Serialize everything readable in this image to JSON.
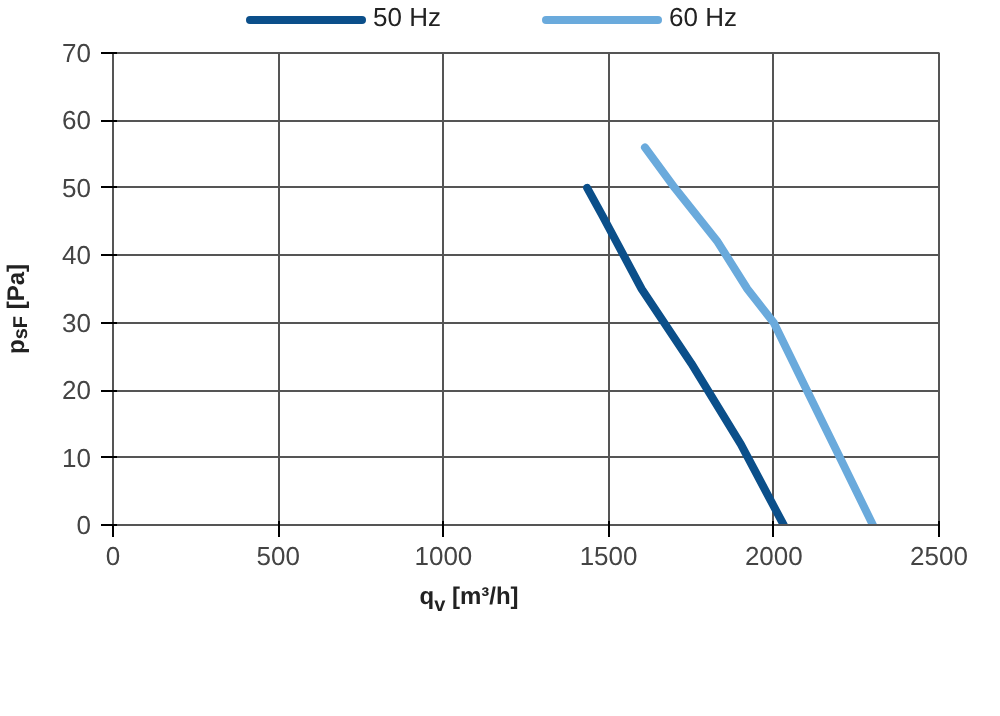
{
  "chart_data": {
    "type": "line",
    "xlabel": "q$_{v}$ [m³/h]",
    "ylabel": "p$_{sF}$ [Pa]",
    "xlim": [
      0,
      2500
    ],
    "xticks": [
      0,
      500,
      1000,
      1500,
      2000,
      2500
    ],
    "ylim": [
      0,
      70
    ],
    "yticks": [
      0,
      10,
      20,
      30,
      40,
      50,
      60,
      70
    ],
    "grid": true,
    "legend": "top",
    "marker": "none",
    "line_style": "solid",
    "series": [
      {
        "name": "50 Hz",
        "color": "#0b4f8a",
        "x": [
          1435,
          1480,
          1600,
          1750,
          1900,
          2030
        ],
        "values": [
          50,
          46,
          35,
          24,
          12,
          0
        ]
      },
      {
        "name": "60 Hz",
        "color": "#6aaadc",
        "x": [
          1610,
          1700,
          1830,
          1920,
          2000,
          2100,
          2200,
          2300
        ],
        "values": [
          56,
          50,
          42,
          35,
          30,
          20,
          10,
          0
        ]
      }
    ]
  }
}
